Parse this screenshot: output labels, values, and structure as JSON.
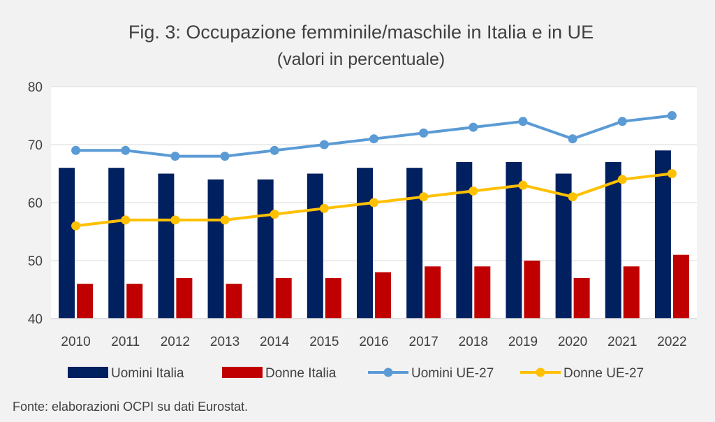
{
  "chart_data": {
    "type": "bar",
    "title": "Fig. 3: Occupazione femminile/maschile in Italia e in UE",
    "subtitle": "(valori in percentuale)",
    "categories": [
      "2010",
      "2011",
      "2012",
      "2013",
      "2014",
      "2015",
      "2016",
      "2017",
      "2018",
      "2019",
      "2020",
      "2021",
      "2022"
    ],
    "ylim": [
      40,
      80
    ],
    "yticks": [
      "40",
      "50",
      "60",
      "70",
      "80"
    ],
    "grid": true,
    "legend_position": "bottom",
    "series": [
      {
        "name": "Uomini Italia",
        "kind": "bar",
        "color": "#002060",
        "values": [
          66,
          66,
          65,
          64,
          64,
          65,
          66,
          66,
          67,
          67,
          65,
          67,
          69
        ]
      },
      {
        "name": "Donne Italia",
        "kind": "bar",
        "color": "#c00000",
        "values": [
          46,
          46,
          47,
          46,
          47,
          47,
          48,
          49,
          49,
          50,
          47,
          49,
          51
        ]
      },
      {
        "name": "Uomini UE-27",
        "kind": "line",
        "color": "#5b9bd5",
        "values": [
          69,
          69,
          68,
          68,
          69,
          70,
          71,
          72,
          73,
          74,
          71,
          74,
          75
        ]
      },
      {
        "name": "Donne UE-27",
        "kind": "line",
        "color": "#ffc000",
        "values": [
          56,
          57,
          57,
          57,
          58,
          59,
          60,
          61,
          62,
          63,
          61,
          64,
          65
        ]
      }
    ],
    "source": "Fonte: elaborazioni OCPI su dati Eurostat."
  }
}
